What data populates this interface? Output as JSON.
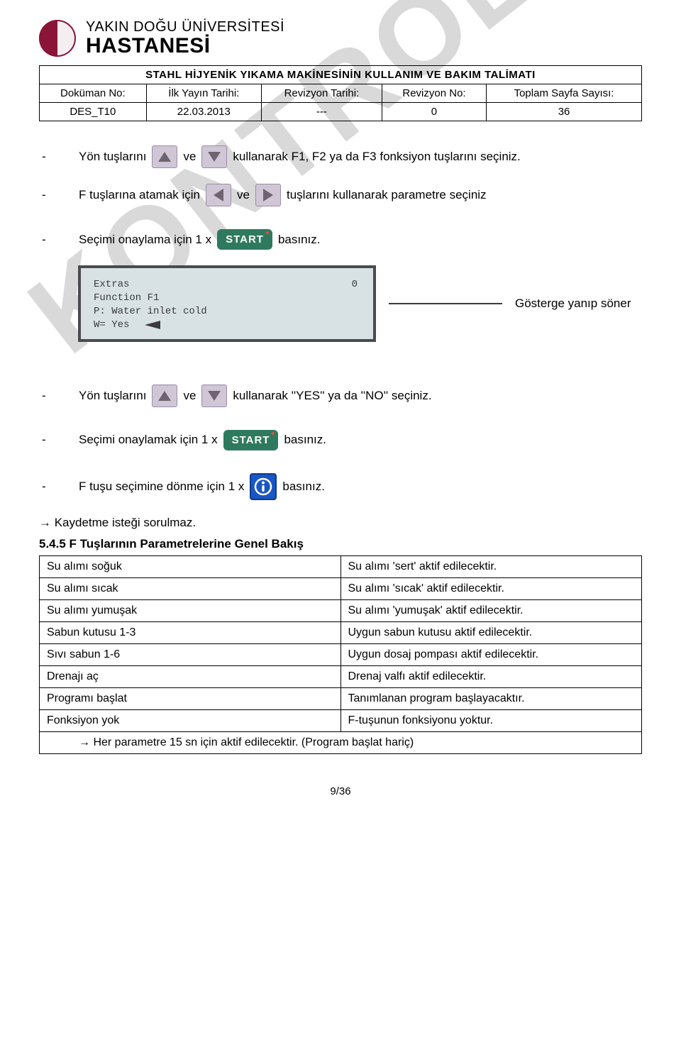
{
  "logo": {
    "line1": "YAKIN DOĞU ÜNİVERSİTESİ",
    "line2": "HASTANESİ"
  },
  "watermark": "KONTROLLÜ KOPYA",
  "doc": {
    "title": "STAHL HİJYENİK YIKAMA MAKİNESİNİN KULLANIM VE BAKIM TALİMATI",
    "headers": {
      "no": "Doküman No:",
      "first": "İlk Yayın Tarihi:",
      "rev_date": "Revizyon Tarihi:",
      "rev_no": "Revizyon No:",
      "pages": "Toplam Sayfa Sayısı:"
    },
    "values": {
      "no": "DES_T10",
      "first": "22.03.2013",
      "rev_date": "---",
      "rev_no": "0",
      "pages": "36"
    }
  },
  "steps": {
    "s1a": "Yön tuşlarını",
    "s1b": "ve",
    "s1c": "kullanarak F1, F2 ya da F3 fonksiyon tuşlarını seçiniz.",
    "s2a": "F tuşlarına atamak için",
    "s2b": "ve",
    "s2c": "tuşlarını kullanarak parametre seçiniz",
    "s3a": "Seçimi onaylama için 1 x",
    "s3b": "basınız.",
    "s4a": "Yön tuşlarını",
    "s4b": "ve",
    "s4c": "kullanarak ''YES'' ya da ''NO'' seçiniz.",
    "s5a": "Seçimi onaylamak için 1 x",
    "s5b": "basınız.",
    "s6a": "F tuşu seçimine dönme için 1 x",
    "s6b": "basınız."
  },
  "start_label": "START",
  "lcd": {
    "l1": "Extras",
    "l2": "Function F1",
    "l3": "P:    Water inlet cold",
    "l4": "W=  Yes",
    "zero": "0",
    "note": "Gösterge yanıp söner"
  },
  "after": {
    "save_note": "→ Kaydetme isteği sorulmaz.",
    "section": "5.4.5 F Tuşlarının Parametrelerine Genel Bakış"
  },
  "params": {
    "rows": [
      {
        "l": "Su alımı soğuk",
        "r": "Su alımı 'sert' aktif edilecektir."
      },
      {
        "l": "Su alımı sıcak",
        "r": "Su alımı 'sıcak' aktif edilecektir."
      },
      {
        "l": "Su alımı yumuşak",
        "r": "Su alımı 'yumuşak' aktif edilecektir."
      },
      {
        "l": "Sabun kutusu 1-3",
        "r": "Uygun sabun kutusu aktif edilecektir."
      },
      {
        "l": "Sıvı sabun 1-6",
        "r": "Uygun dosaj pompası aktif edilecektir."
      },
      {
        "l": "Drenajı aç",
        "r": "Drenaj valfı aktif edilecektir."
      },
      {
        "l": "Programı başlat",
        "r": "Tanımlanan program başlayacaktır."
      },
      {
        "l": "Fonksiyon yok",
        "r": "F-tuşunun fonksiyonu yoktur."
      }
    ],
    "note": "→ Her parametre 15 sn için aktif edilecektir. (Program başlat hariç)"
  },
  "page_num": "9/36"
}
